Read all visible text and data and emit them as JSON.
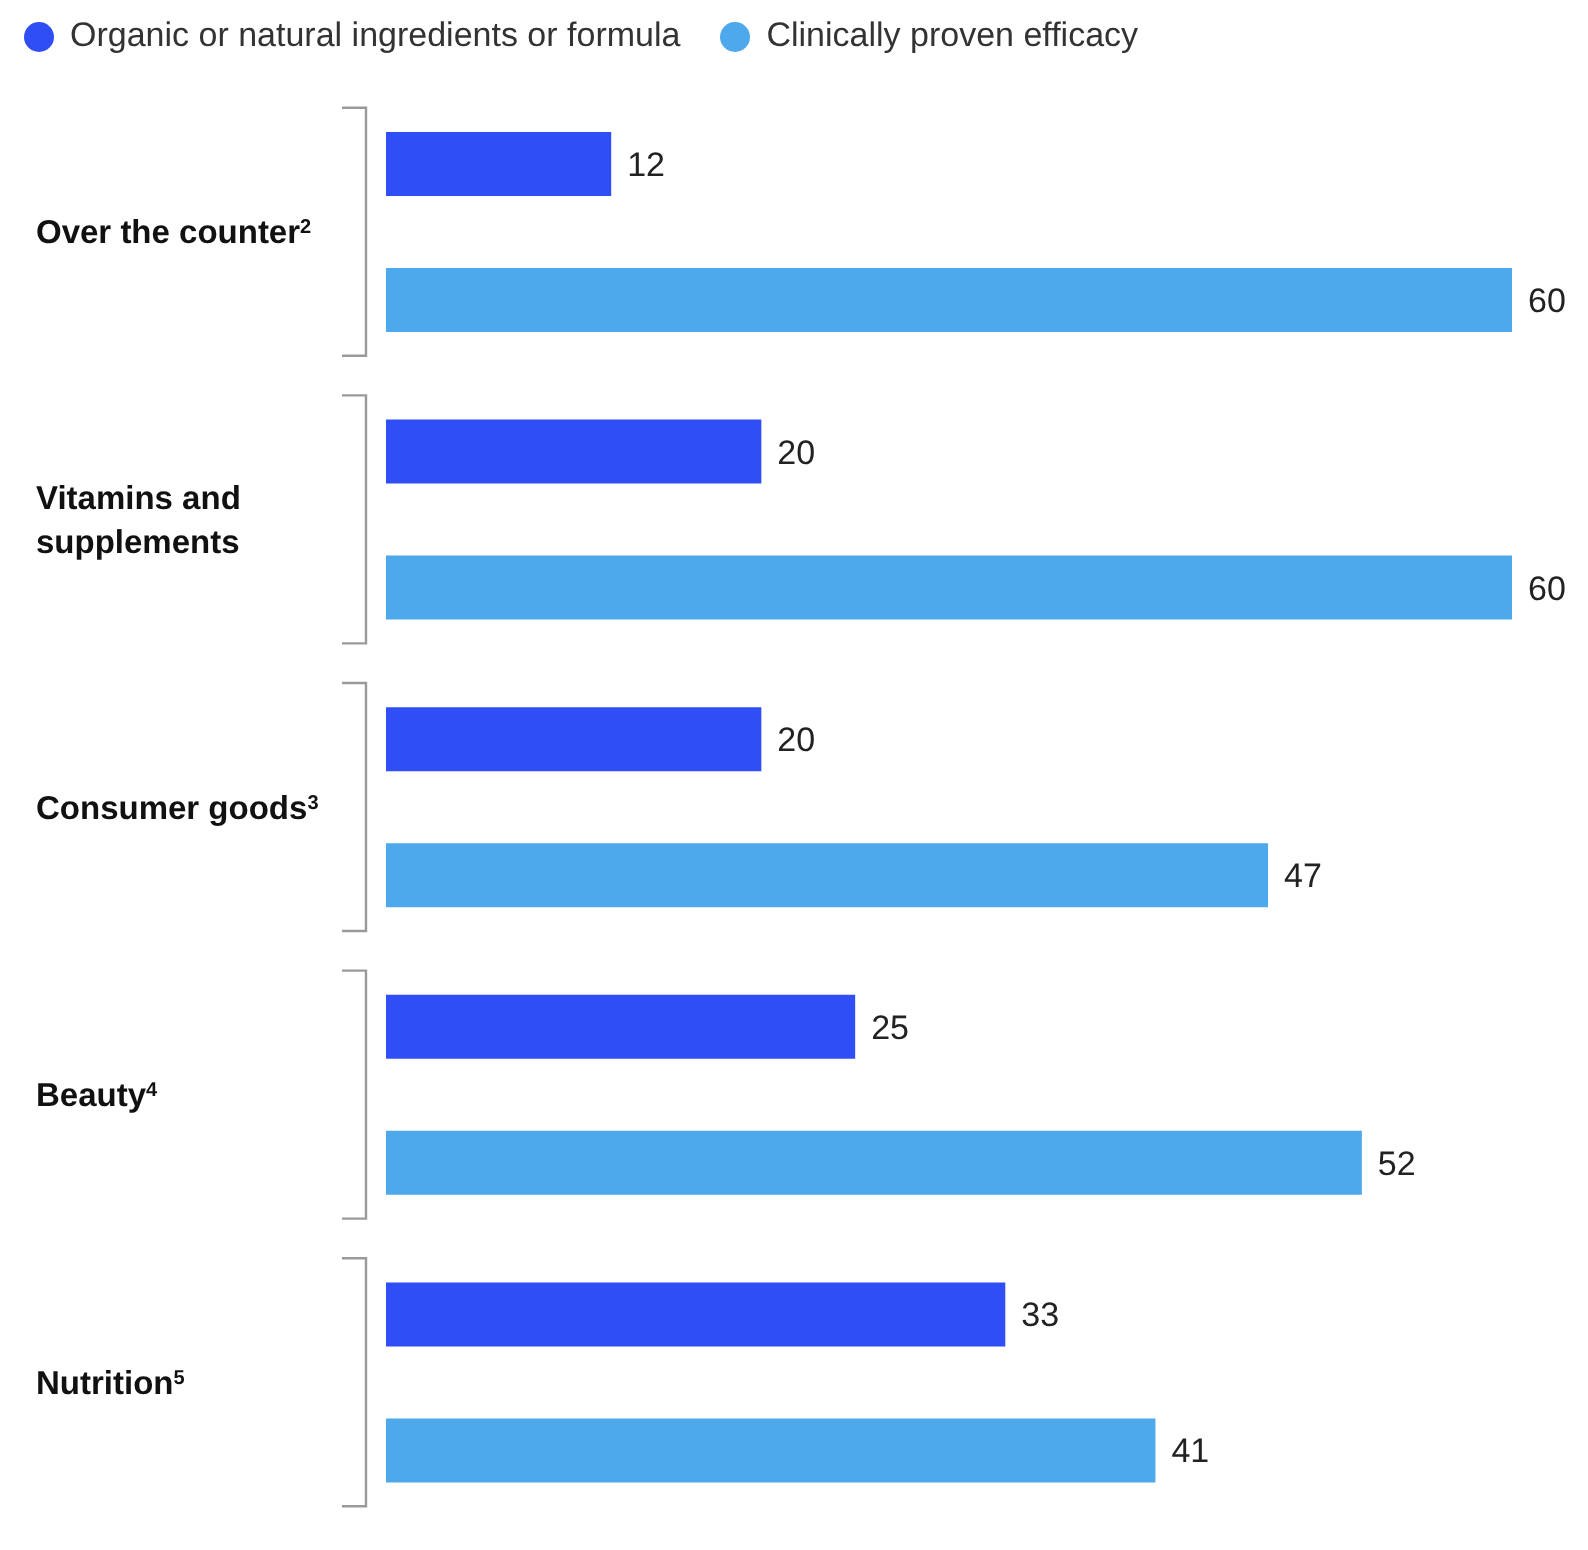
{
  "chart_data": {
    "type": "bar",
    "orientation": "horizontal",
    "categories": [
      "Over the counter$^{2}$",
      "Vitamins and supplements",
      "Consumer goods$^{3}$",
      "Beauty$^{4}$",
      "Nutrition$^{5}$"
    ],
    "series": [
      {
        "name": "Organic or natural ingredients or formula",
        "color": "#2f4ef5",
        "values": [
          12,
          20,
          20,
          25,
          33
        ]
      },
      {
        "name": "Clinically proven efficacy",
        "color": "#4ea8ec",
        "values": [
          60,
          60,
          47,
          52,
          41
        ]
      }
    ],
    "data_labels": true,
    "legend": "top left",
    "grid": false
  }
}
